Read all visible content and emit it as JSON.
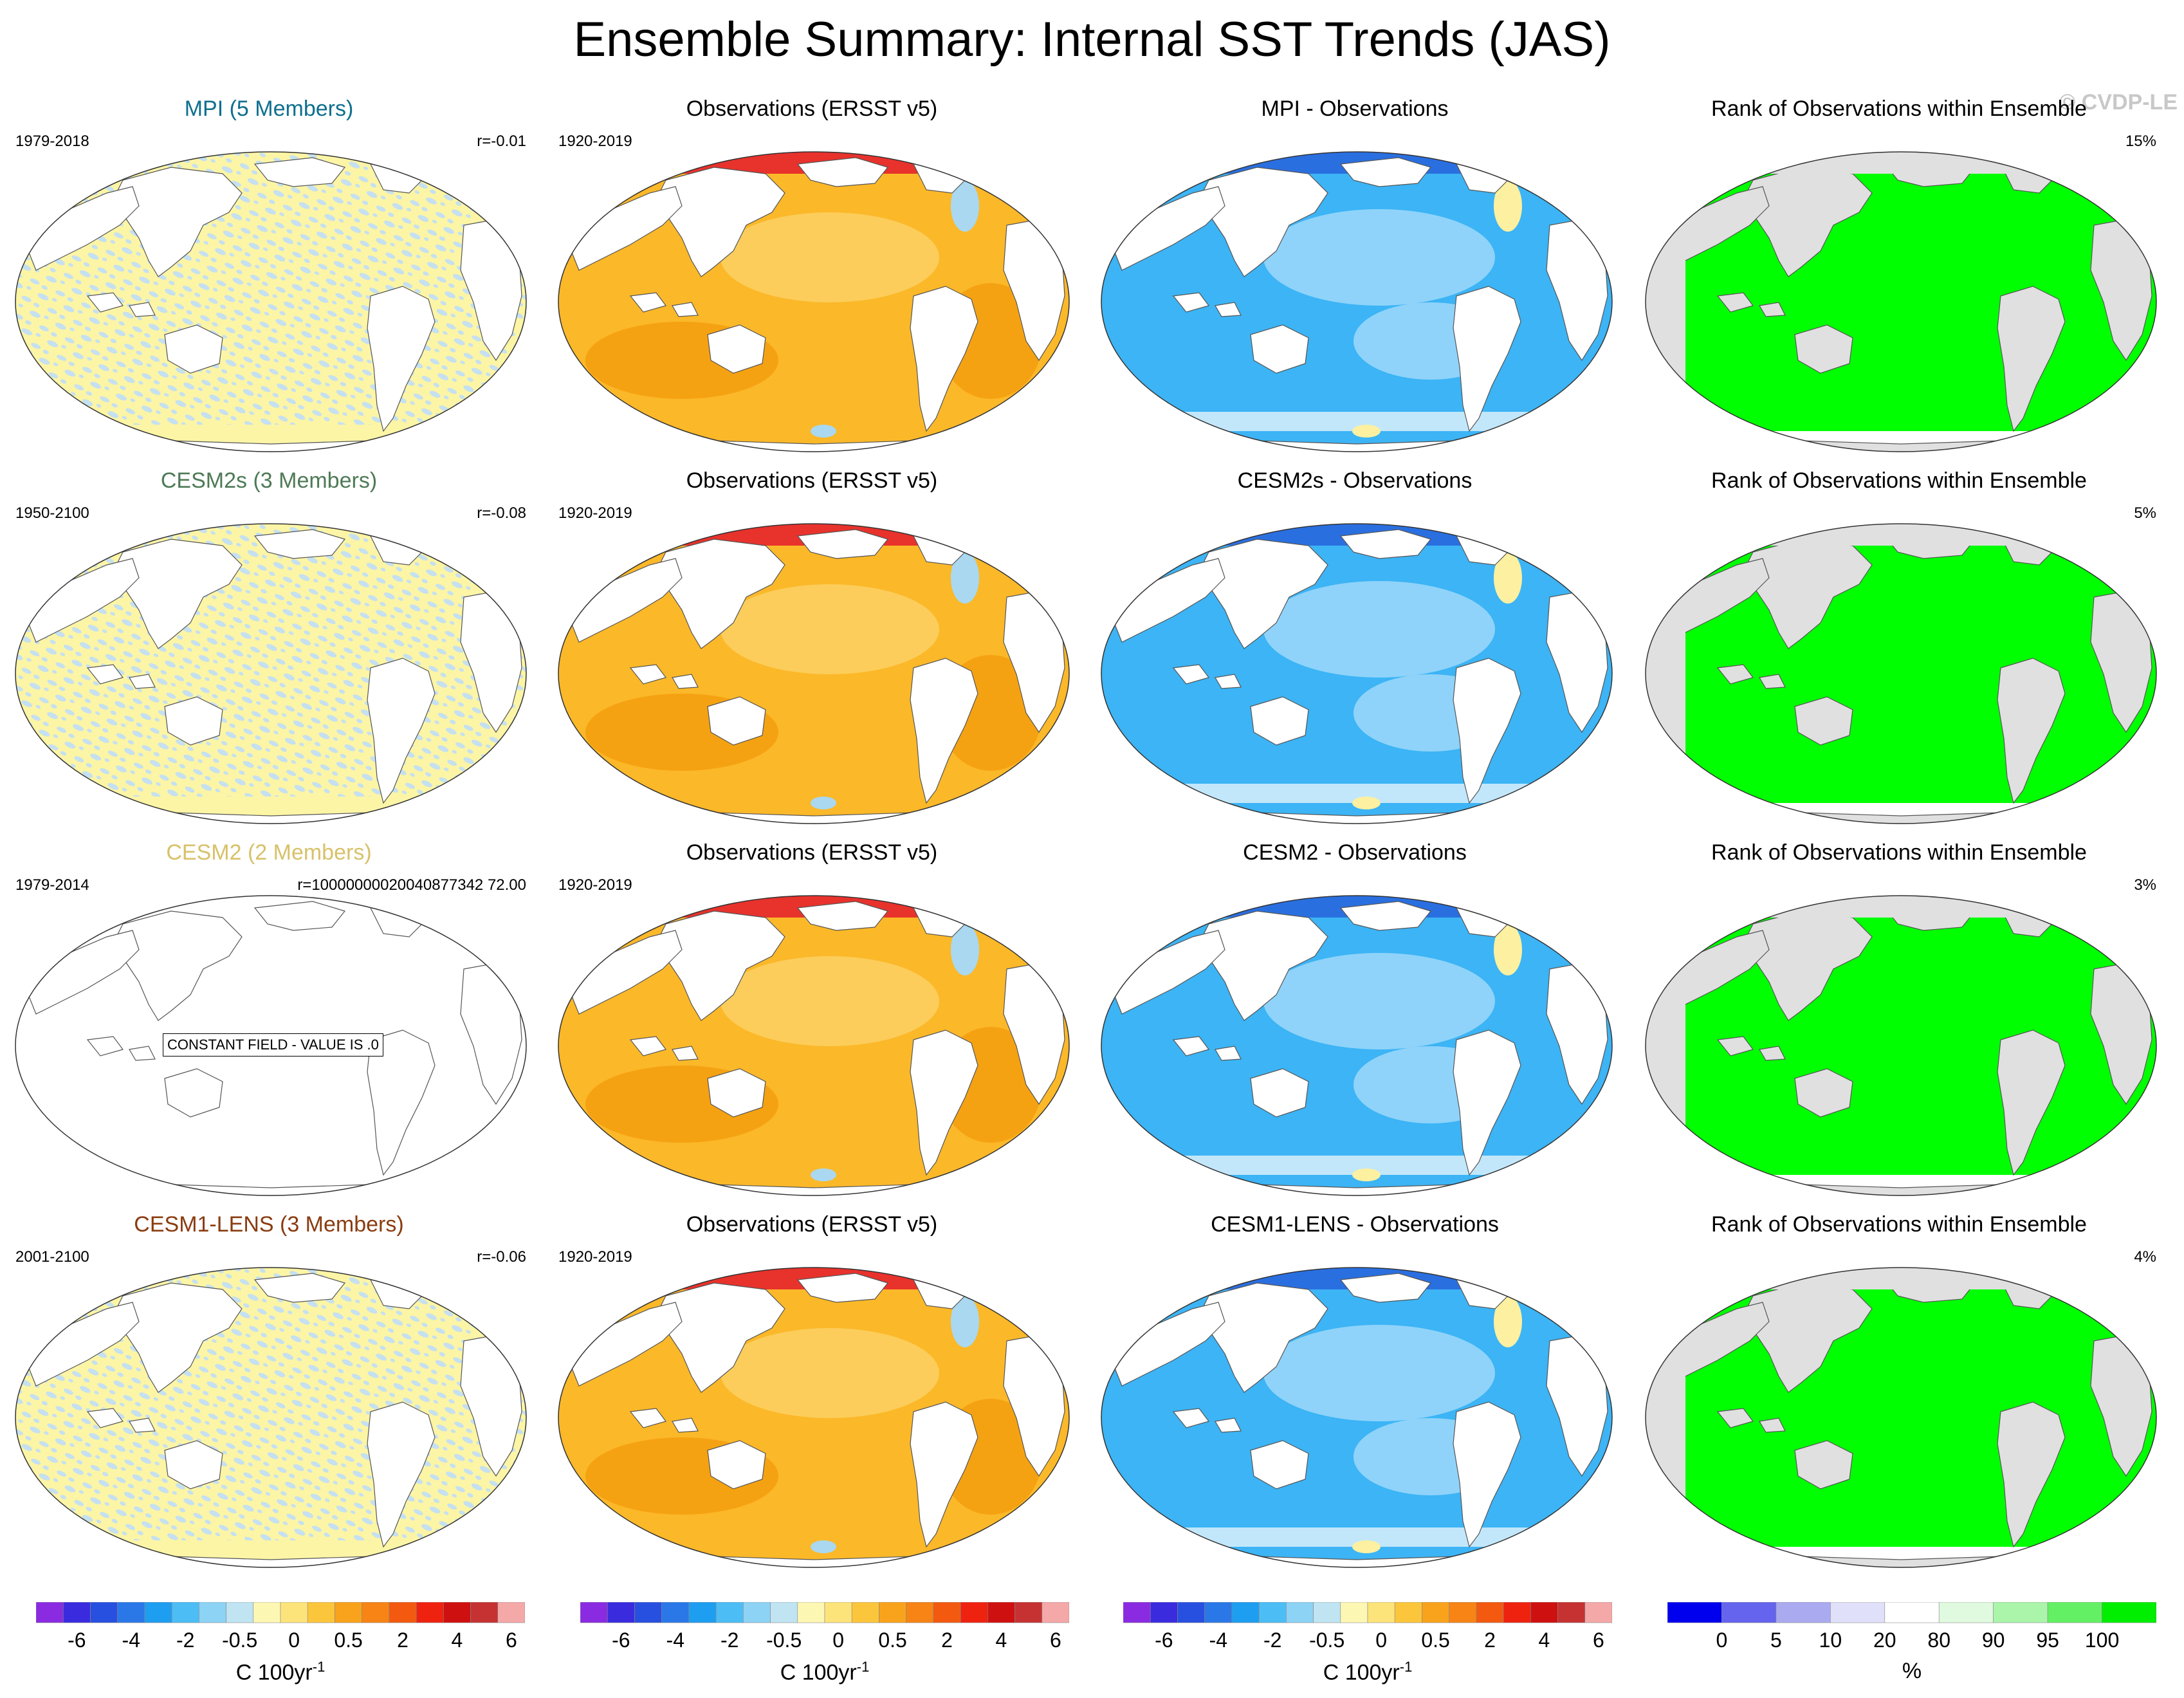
{
  "title": "Ensemble Summary: Internal SST Trends (JAS)",
  "copyright": "© CVDP-LE",
  "colors": {
    "noise_yellow": "#fcf5a6",
    "noise_blue": "#c5e0f0",
    "obs_main": "#fbb829",
    "obs_light": "#fccd5a",
    "obs_dark": "#f5a212",
    "obs_red": "#e8322c",
    "diff_main": "#3cb4f5",
    "diff_light": "#8fd3fa",
    "diff_pale": "#c2e7fb",
    "rank_green": "#00ff00",
    "land_grey": "#e0e0e0"
  },
  "rows": [
    {
      "model": {
        "title": "MPI (5 Members)",
        "title_color": "#0e6f8f",
        "years": "1979-2018",
        "stat": "r=-0.01",
        "constant": false
      },
      "obs": {
        "title": "Observations (ERSST v5)",
        "years": "1920-2019"
      },
      "diff": {
        "title": "MPI - Observations"
      },
      "rank": {
        "title": "Rank of Observations within Ensemble",
        "percent": "15%"
      }
    },
    {
      "model": {
        "title": "CESM2s (3 Members)",
        "title_color": "#4e7a56",
        "years": "1950-2100",
        "stat": "r=-0.08",
        "constant": false
      },
      "obs": {
        "title": "Observations (ERSST v5)",
        "years": "1920-2019"
      },
      "diff": {
        "title": "CESM2s - Observations"
      },
      "rank": {
        "title": "Rank of Observations within Ensemble",
        "percent": "5%"
      }
    },
    {
      "model": {
        "title": "CESM2 (2 Members)",
        "title_color": "#d8c16a",
        "years": "1979-2014",
        "stat": "r=10000000020040877342 72.00",
        "constant": true,
        "constant_text": "CONSTANT FIELD - VALUE IS .0"
      },
      "obs": {
        "title": "Observations (ERSST v5)",
        "years": "1920-2019"
      },
      "diff": {
        "title": "CESM2 - Observations"
      },
      "rank": {
        "title": "Rank of Observations within Ensemble",
        "percent": "3%"
      }
    },
    {
      "model": {
        "title": "CESM1-LENS (3 Members)",
        "title_color": "#8a3c10",
        "years": "2001-2100",
        "stat": "r=-0.06",
        "constant": false
      },
      "obs": {
        "title": "Observations (ERSST v5)",
        "years": "1920-2019"
      },
      "diff": {
        "title": "CESM1-LENS - Observations"
      },
      "rank": {
        "title": "Rank of Observations within Ensemble",
        "percent": "4%"
      }
    }
  ],
  "trend_colorbar": {
    "units": "C 100yr",
    "units_exp": "-1",
    "labels": [
      "-6",
      "-4",
      "-2",
      "-0.5",
      "0",
      "0.5",
      "2",
      "4",
      "6"
    ],
    "colors": [
      "#8a2be2",
      "#3a2cde",
      "#2850e0",
      "#2a78e8",
      "#1e9ef0",
      "#4dbdf5",
      "#8dd3f5",
      "#c0e4f2",
      "#fdf7b4",
      "#fde47a",
      "#fcc63c",
      "#f9a31c",
      "#f78414",
      "#f35a10",
      "#ef2210",
      "#cf1010",
      "#c63232",
      "#f5a8a8"
    ]
  },
  "rank_colorbar": {
    "units": "%",
    "labels": [
      "0",
      "5",
      "10",
      "20",
      "80",
      "90",
      "95",
      "100"
    ],
    "colors": [
      "#0000ee",
      "#6464ee",
      "#aaaaf0",
      "#e0e0fa",
      "#ffffff",
      "#e0fae0",
      "#aaf5aa",
      "#64f064",
      "#00ee00"
    ]
  }
}
